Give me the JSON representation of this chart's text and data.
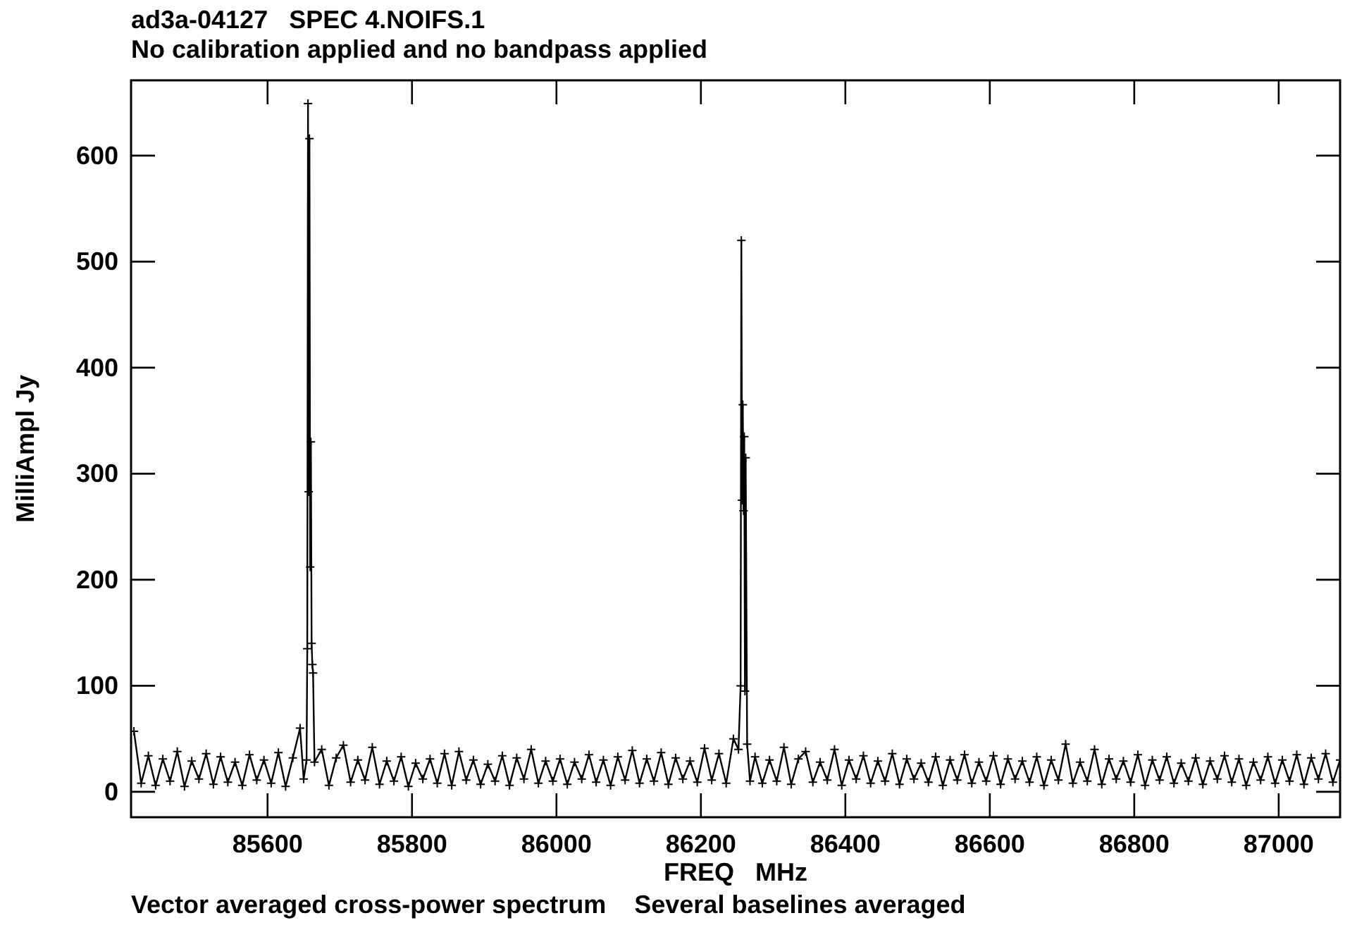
{
  "chart_data": {
    "type": "line",
    "title": "ad3a-04127   SPEC 4.NOIFS.1",
    "subtitle": "No calibration applied and no bandpass applied",
    "xlabel": "FREQ   MHz",
    "ylabel": "MilliAmpl Jy",
    "annotations": [
      "Vector averaged cross-power spectrum    Several baselines averaged"
    ],
    "xlim": [
      85411,
      87085
    ],
    "xticks": [
      85600,
      85800,
      86000,
      86200,
      86400,
      86600,
      86800,
      87000
    ],
    "ylim": [
      -24,
      671
    ],
    "yticks": [
      0,
      100,
      200,
      300,
      400,
      500,
      600
    ],
    "grid": false,
    "marker": "cross",
    "line_style": "solid",
    "series": [
      {
        "color": "#000000",
        "x": [
          85415,
          85425,
          85435,
          85445,
          85455,
          85465,
          85475,
          85485,
          85495,
          85505,
          85515,
          85525,
          85535,
          85545,
          85555,
          85565,
          85575,
          85585,
          85595,
          85605,
          85615,
          85625,
          85635,
          85645,
          85650,
          85654,
          85655,
          85656,
          85657,
          85658,
          85659,
          85660,
          85661,
          85662,
          85663,
          85665,
          85675,
          85685,
          85695,
          85705,
          85715,
          85725,
          85735,
          85745,
          85755,
          85765,
          85775,
          85785,
          85795,
          85805,
          85815,
          85825,
          85835,
          85845,
          85855,
          85865,
          85875,
          85885,
          85895,
          85905,
          85915,
          85925,
          85935,
          85945,
          85955,
          85965,
          85975,
          85985,
          85995,
          86005,
          86015,
          86025,
          86035,
          86045,
          86055,
          86065,
          86075,
          86085,
          86095,
          86105,
          86115,
          86125,
          86135,
          86145,
          86155,
          86165,
          86175,
          86185,
          86195,
          86205,
          86215,
          86225,
          86235,
          86245,
          86252,
          86255,
          86256,
          86257,
          86258,
          86259,
          86260,
          86261,
          86262,
          86264,
          86268,
          86275,
          86285,
          86295,
          86305,
          86315,
          86325,
          86335,
          86345,
          86355,
          86365,
          86375,
          86385,
          86395,
          86405,
          86415,
          86425,
          86435,
          86445,
          86455,
          86465,
          86475,
          86485,
          86495,
          86505,
          86515,
          86525,
          86535,
          86545,
          86555,
          86565,
          86575,
          86585,
          86595,
          86605,
          86615,
          86625,
          86635,
          86645,
          86655,
          86665,
          86675,
          86685,
          86695,
          86705,
          86715,
          86725,
          86735,
          86745,
          86755,
          86765,
          86775,
          86785,
          86795,
          86805,
          86815,
          86825,
          86835,
          86845,
          86855,
          86865,
          86875,
          86885,
          86895,
          86905,
          86915,
          86925,
          86935,
          86945,
          86955,
          86965,
          86975,
          86985,
          86995,
          87005,
          87015,
          87025,
          87035,
          87045,
          87055,
          87065,
          87075,
          87085
        ],
        "values": [
          57,
          8,
          34,
          6,
          31,
          10,
          38,
          5,
          29,
          12,
          36,
          7,
          33,
          9,
          28,
          6,
          35,
          11,
          30,
          8,
          37,
          5,
          32,
          60,
          12,
          30,
          135,
          649,
          283,
          616,
          212,
          330,
          140,
          120,
          112,
          28,
          40,
          6,
          32,
          44,
          9,
          30,
          11,
          42,
          7,
          29,
          10,
          33,
          5,
          27,
          12,
          31,
          8,
          36,
          6,
          38,
          11,
          30,
          7,
          26,
          10,
          34,
          6,
          32,
          12,
          40,
          8,
          29,
          10,
          31,
          7,
          28,
          12,
          35,
          9,
          30,
          6,
          33,
          11,
          39,
          8,
          31,
          10,
          37,
          7,
          32,
          12,
          29,
          9,
          41,
          11,
          36,
          8,
          50,
          40,
          100,
          520,
          275,
          365,
          265,
          335,
          95,
          315,
          45,
          10,
          33,
          8,
          30,
          10,
          42,
          7,
          31,
          38,
          9,
          28,
          11,
          40,
          6,
          30,
          12,
          34,
          8,
          29,
          10,
          36,
          7,
          31,
          12,
          27,
          9,
          33,
          6,
          30,
          11,
          35,
          8,
          28,
          10,
          34,
          7,
          31,
          12,
          29,
          9,
          33,
          6,
          30,
          11,
          45,
          8,
          28,
          10,
          40,
          7,
          31,
          12,
          29,
          9,
          35,
          6,
          30,
          11,
          33,
          8,
          27,
          10,
          32,
          7,
          29,
          12,
          34,
          9,
          31,
          6,
          28,
          11,
          33,
          8,
          30,
          10,
          35,
          7,
          32,
          12,
          36,
          9,
          30
        ]
      }
    ]
  }
}
